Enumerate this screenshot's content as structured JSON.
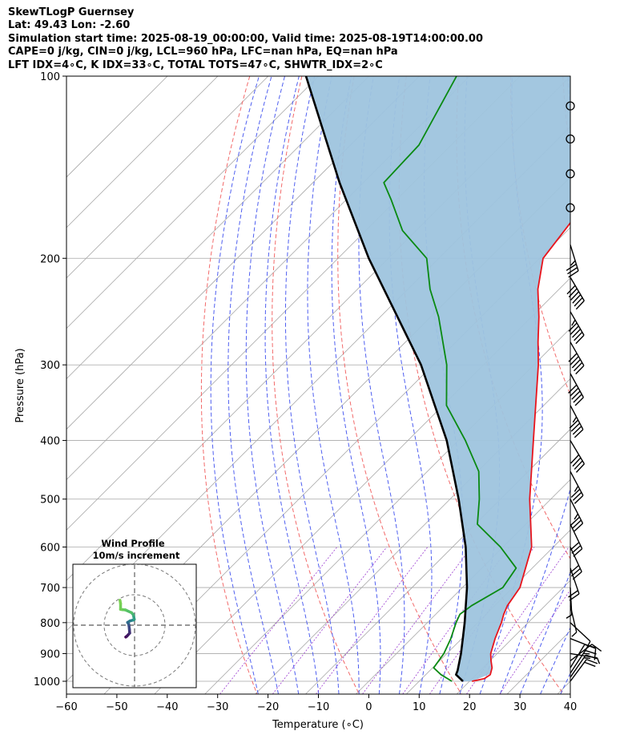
{
  "header": {
    "line1": "SkewTLogP Guernsey",
    "line2": "Lat: 49.43   Lon: -2.60",
    "line3": "Simulation start time: 2025-08-19_00:00:00, Valid time: 2025-08-19T14:00:00.00",
    "line4": "CAPE=0 j/kg, CIN=0 j/kg, LCL=960 hPa, LFC=nan hPa, EQ=nan hPa",
    "line5": "LFT IDX=4∘C, K IDX=33∘C, TOTAL TOTS=47∘C, SHWTR_IDX=2∘C"
  },
  "axes": {
    "xlabel": "Temperature (∘C)",
    "ylabel": "Pressure (hPa)",
    "x_ticks": [
      "−60",
      "−50",
      "−40",
      "−30",
      "−20",
      "−10",
      "0",
      "10",
      "20",
      "30",
      "40"
    ],
    "y_ticks": [
      "100",
      "200",
      "300",
      "400",
      "500",
      "600",
      "700",
      "800",
      "900",
      "1000"
    ]
  },
  "hodograph": {
    "title": "Wind Profile",
    "subtitle": "10m/s increment"
  },
  "chart_data": {
    "type": "line",
    "title": "SkewTLogP Guernsey",
    "xlabel": "Temperature (∘C)",
    "ylabel": "Pressure (hPa)",
    "xlim": [
      -60,
      40
    ],
    "ylim": [
      1050,
      100
    ],
    "y_scale": "log",
    "skew": true,
    "grid": true,
    "isotherm_ticks": [
      -60,
      -50,
      -40,
      -30,
      -20,
      -10,
      0,
      10,
      20,
      30,
      40
    ],
    "isobar_ticks": [
      100,
      200,
      300,
      400,
      500,
      600,
      700,
      800,
      900,
      1000
    ],
    "series": [
      {
        "name": "Temperature",
        "color": "#e8141c",
        "points": [
          [
            1000,
            20.5
          ],
          [
            990,
            22.4
          ],
          [
            975,
            22.8
          ],
          [
            950,
            21.8
          ],
          [
            925,
            20.2
          ],
          [
            900,
            18.7
          ],
          [
            850,
            16.6
          ],
          [
            800,
            14.7
          ],
          [
            775,
            13.5
          ],
          [
            750,
            12.5
          ],
          [
            700,
            11.4
          ],
          [
            600,
            5.7
          ],
          [
            500,
            -4.2
          ],
          [
            400,
            -15.1
          ],
          [
            300,
            -29.1
          ],
          [
            275,
            -33.7
          ],
          [
            250,
            -38.5
          ],
          [
            225,
            -44.2
          ],
          [
            200,
            -49.3
          ],
          [
            175,
            -50.9
          ],
          [
            150,
            -51.7
          ],
          [
            125,
            -54.5
          ],
          [
            100,
            -57.4
          ]
        ]
      },
      {
        "name": "Dewpoint",
        "color": "#0a8a12",
        "points": [
          [
            1000,
            16.5
          ],
          [
            975,
            13.0
          ],
          [
            950,
            10.2
          ],
          [
            900,
            9.4
          ],
          [
            850,
            7.8
          ],
          [
            800,
            5.7
          ],
          [
            775,
            4.8
          ],
          [
            750,
            5.4
          ],
          [
            700,
            8.0
          ],
          [
            650,
            6.8
          ],
          [
            600,
            -0.5
          ],
          [
            550,
            -9.6
          ],
          [
            500,
            -14.2
          ],
          [
            450,
            -19.8
          ],
          [
            400,
            -28.6
          ],
          [
            350,
            -39.3
          ],
          [
            300,
            -47.3
          ],
          [
            250,
            -58.4
          ],
          [
            225,
            -65.6
          ],
          [
            200,
            -72.4
          ],
          [
            180,
            -82.7
          ],
          [
            160,
            -91.1
          ],
          [
            150,
            -95.9
          ],
          [
            130,
            -96.4
          ],
          [
            100,
            -102.6
          ]
        ]
      },
      {
        "name": "Parcel",
        "color": "#000000",
        "points": [
          [
            1000,
            18.7
          ],
          [
            975,
            16.0
          ],
          [
            960,
            15.5
          ],
          [
            900,
            12.8
          ],
          [
            850,
            10.2
          ],
          [
            800,
            7.4
          ],
          [
            700,
            0.9
          ],
          [
            600,
            -7.4
          ],
          [
            500,
            -18.3
          ],
          [
            400,
            -32.3
          ],
          [
            300,
            -52.4
          ],
          [
            200,
            -83.9
          ],
          [
            150,
            -104.7
          ],
          [
            100,
            -132.5
          ]
        ]
      }
    ],
    "shaded_region": {
      "name": "CAPE/CIN area between parcel and environment",
      "color": "#9ec4de"
    },
    "hodograph": {
      "title": "Wind Profile",
      "ring_increment_ms": 10,
      "rings_ms": [
        10,
        20,
        30
      ],
      "points_uv": [
        [
          -2.9,
          -3.9
        ],
        [
          -2.5,
          -3.6
        ],
        [
          -1.6,
          -2.6
        ],
        [
          -1.7,
          -1.3
        ],
        [
          -1.9,
          0.3
        ],
        [
          -2.3,
          0.9
        ],
        [
          -1.5,
          1.4
        ],
        [
          -0.4,
          1.7
        ],
        [
          -0.1,
          1.9
        ],
        [
          -0.4,
          3.4
        ],
        [
          -1.0,
          4.1
        ],
        [
          -3.0,
          5.0
        ],
        [
          -4.0,
          5.1
        ],
        [
          -4.6,
          5.2
        ],
        [
          -4.6,
          7.1
        ],
        [
          -4.8,
          8.2
        ]
      ]
    },
    "wind_barbs": [
      {
        "p": 1000,
        "u": -2.9,
        "v": -3.9
      },
      {
        "p": 985,
        "u": -2.5,
        "v": -3.6
      },
      {
        "p": 970,
        "u": -2.1,
        "v": -3.2
      },
      {
        "p": 950,
        "u": -1.6,
        "v": -2.6
      },
      {
        "p": 925,
        "u": -1.7,
        "v": -1.3
      },
      {
        "p": 900,
        "u": -1.9,
        "v": 0.3
      },
      {
        "p": 850,
        "u": -2.3,
        "v": 0.9
      },
      {
        "p": 800,
        "u": -1.5,
        "v": 1.4
      },
      {
        "p": 750,
        "u": -0.4,
        "v": 1.7
      },
      {
        "p": 700,
        "u": -0.1,
        "v": 1.9
      },
      {
        "p": 650,
        "u": -1.7,
        "v": 5.0
      },
      {
        "p": 600,
        "u": -3.0,
        "v": 6.5
      },
      {
        "p": 550,
        "u": -3.5,
        "v": 7.3
      },
      {
        "p": 500,
        "u": -3.9,
        "v": 7.6
      },
      {
        "p": 450,
        "u": -4.4,
        "v": 8.3
      },
      {
        "p": 400,
        "u": -5.2,
        "v": 8.7
      },
      {
        "p": 350,
        "u": -5.6,
        "v": 10.6
      },
      {
        "p": 310,
        "u": -6.0,
        "v": 10.9
      },
      {
        "p": 275,
        "u": -6.7,
        "v": 11.7
      },
      {
        "p": 245,
        "u": -7.4,
        "v": 12.8
      },
      {
        "p": 215,
        "u": -8.0,
        "v": 13.5
      },
      {
        "p": 190,
        "u": -2.8,
        "v": 9.1
      },
      {
        "p": 165,
        "u": 0,
        "v": 0
      },
      {
        "p": 145,
        "u": 0,
        "v": 0
      },
      {
        "p": 127,
        "u": 0,
        "v": 0
      },
      {
        "p": 112,
        "u": 0,
        "v": 0
      }
    ],
    "colors": {
      "dry_adiabats": "#f26a6a",
      "moist_adiabats": "#4f5ff0",
      "mixing_ratio": "#9a3cd0",
      "isotherms": "#a8a8a8",
      "isobars": "#a8a8a8"
    }
  }
}
